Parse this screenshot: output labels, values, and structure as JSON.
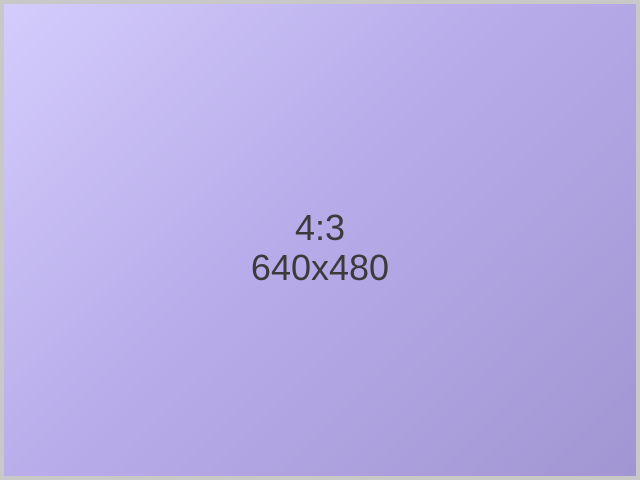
{
  "placeholder": {
    "ratio": "4:3",
    "dimensions": "640x480"
  },
  "colors": {
    "gradient_start": "#d4ccfc",
    "gradient_end": "#a195d2",
    "border": "#c8c8c8",
    "text": "#3b3b3b"
  }
}
